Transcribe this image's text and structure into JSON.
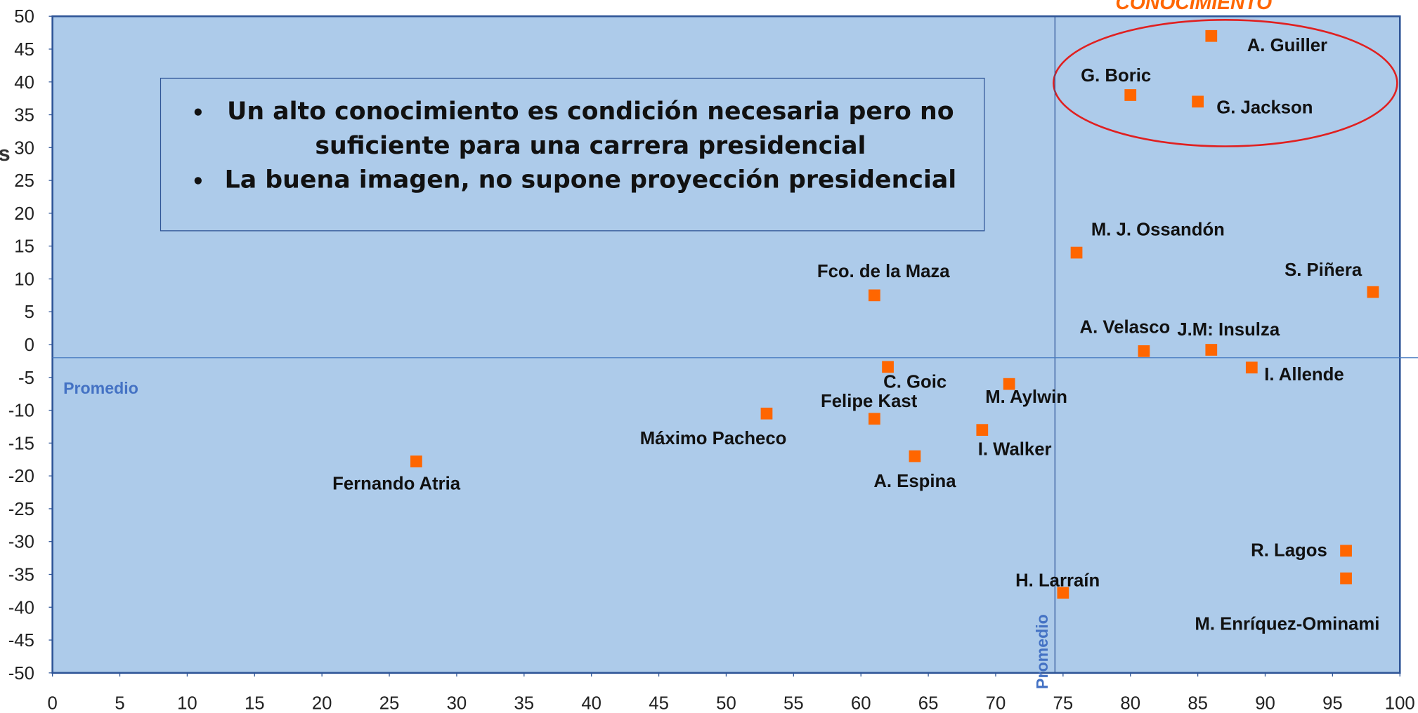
{
  "chart_data": {
    "type": "scatter",
    "ylabel": "s",
    "corner_title": "CONOCIMIENTO",
    "xlim": [
      0,
      100
    ],
    "ylim": [
      -50,
      50
    ],
    "xticks": [
      0,
      5,
      10,
      15,
      20,
      25,
      30,
      35,
      40,
      45,
      50,
      55,
      60,
      65,
      70,
      75,
      80,
      85,
      90,
      95,
      100
    ],
    "yticks": [
      -50,
      -45,
      -40,
      -35,
      -30,
      -25,
      -20,
      -15,
      -10,
      -5,
      0,
      5,
      10,
      15,
      20,
      25,
      30,
      35,
      40,
      45,
      50
    ],
    "color": "#ff6600",
    "background": "#adcbea",
    "average_x": 74.4,
    "average_y": -2,
    "average_label_x": "Promedio",
    "average_label_y": "Promedio",
    "callout": [
      "Un alto conocimiento es condición necesaria pero no suficiente para una carrera presidencial",
      "La buena imagen, no supone proyección presidencial"
    ],
    "points": [
      {
        "label": "A. Guiller",
        "x": 86,
        "y": 47
      },
      {
        "label": "G. Boric",
        "x": 80,
        "y": 38
      },
      {
        "label": "G. Jackson",
        "x": 85,
        "y": 37
      },
      {
        "label": "M. J. Ossandón",
        "x": 76,
        "y": 14
      },
      {
        "label": "S. Piñera",
        "x": 98,
        "y": 8
      },
      {
        "label": "Fco. de la Maza",
        "x": 61,
        "y": 7.5
      },
      {
        "label": "A. Velasco",
        "x": 81,
        "y": -1
      },
      {
        "label": "J.M: Insulza",
        "x": 86,
        "y": -0.8
      },
      {
        "label": "I. Allende",
        "x": 89,
        "y": -3.5
      },
      {
        "label": "C. Goic",
        "x": 62,
        "y": -3.4
      },
      {
        "label": "M. Aylwin",
        "x": 71,
        "y": -6
      },
      {
        "label": "Máximo Pacheco",
        "x": 53,
        "y": -10.5
      },
      {
        "label": "Felipe Kast",
        "x": 61,
        "y": -11.3
      },
      {
        "label": "I. Walker",
        "x": 69,
        "y": -13
      },
      {
        "label": "A. Espina",
        "x": 64,
        "y": -17
      },
      {
        "label": "Fernando Atria",
        "x": 27,
        "y": -17.8
      },
      {
        "label": "R. Lagos",
        "x": 96,
        "y": -31.4
      },
      {
        "label": "M. Enríquez-Ominami",
        "x": 96,
        "y": -35.6
      },
      {
        "label": "H. Larraín",
        "x": 75,
        "y": -37.8
      }
    ]
  }
}
